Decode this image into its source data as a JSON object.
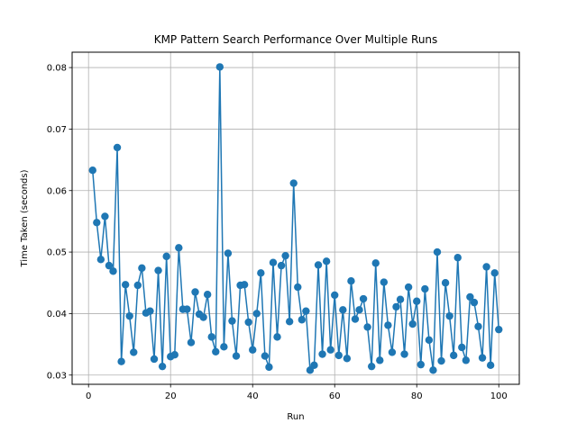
{
  "chart_data": {
    "type": "line",
    "title": "KMP Pattern Search Performance Over Multiple Runs",
    "xlabel": "Run",
    "ylabel": "Time Taken (seconds)",
    "xlim": [
      -4,
      105
    ],
    "ylim": [
      0.0285,
      0.0825
    ],
    "xticks": [
      0,
      20,
      40,
      60,
      80,
      100
    ],
    "yticks": [
      0.03,
      0.04,
      0.05,
      0.06,
      0.07,
      0.08
    ],
    "xtick_labels": [
      "0",
      "20",
      "40",
      "60",
      "80",
      "100"
    ],
    "ytick_labels": [
      "0.03",
      "0.04",
      "0.05",
      "0.06",
      "0.07",
      "0.08"
    ],
    "grid": true,
    "marker": "circle",
    "color": "#1f77b4",
    "series": [
      {
        "x": [
          1,
          2,
          3,
          4,
          5,
          6,
          7,
          8,
          9,
          10,
          11,
          12,
          13,
          14,
          15,
          16,
          17,
          18,
          19,
          20,
          21,
          22,
          23,
          24,
          25,
          26,
          27,
          28,
          29,
          30,
          31,
          32,
          33,
          34,
          35,
          36,
          37,
          38,
          39,
          40,
          41,
          42,
          43,
          44,
          45,
          46,
          47,
          48,
          49,
          50,
          51,
          52,
          53,
          54,
          55,
          56,
          57,
          58,
          59,
          60,
          61,
          62,
          63,
          64,
          65,
          66,
          67,
          68,
          69,
          70,
          71,
          72,
          73,
          74,
          75,
          76,
          77,
          78,
          79,
          80,
          81,
          82,
          83,
          84,
          85,
          86,
          87,
          88,
          89,
          90,
          91,
          92,
          93,
          94,
          95,
          96,
          97,
          98,
          99,
          100
        ],
        "values": [
          0.0633,
          0.0548,
          0.0488,
          0.0558,
          0.0478,
          0.0469,
          0.067,
          0.0322,
          0.0447,
          0.0396,
          0.0337,
          0.0446,
          0.0474,
          0.0401,
          0.0404,
          0.0326,
          0.047,
          0.0314,
          0.0493,
          0.033,
          0.0333,
          0.0507,
          0.0407,
          0.0407,
          0.0353,
          0.0435,
          0.0399,
          0.0394,
          0.0431,
          0.0362,
          0.0338,
          0.0801,
          0.0346,
          0.0498,
          0.0388,
          0.0331,
          0.0446,
          0.0447,
          0.0386,
          0.0341,
          0.04,
          0.0466,
          0.0331,
          0.0313,
          0.0483,
          0.0362,
          0.0478,
          0.0494,
          0.0387,
          0.0612,
          0.0443,
          0.039,
          0.0404,
          0.0308,
          0.0316,
          0.0479,
          0.0334,
          0.0485,
          0.0341,
          0.043,
          0.0332,
          0.0406,
          0.0327,
          0.0453,
          0.0391,
          0.0406,
          0.0424,
          0.0378,
          0.0314,
          0.0482,
          0.0324,
          0.0451,
          0.0381,
          0.0337,
          0.0411,
          0.0423,
          0.0334,
          0.0443,
          0.0383,
          0.042,
          0.0317,
          0.044,
          0.0357,
          0.0308,
          0.05,
          0.0323,
          0.045,
          0.0396,
          0.0332,
          0.0491,
          0.0345,
          0.0324,
          0.0427,
          0.0418,
          0.0379,
          0.0328,
          0.0476,
          0.0316,
          0.0466,
          0.0374
        ]
      }
    ]
  }
}
